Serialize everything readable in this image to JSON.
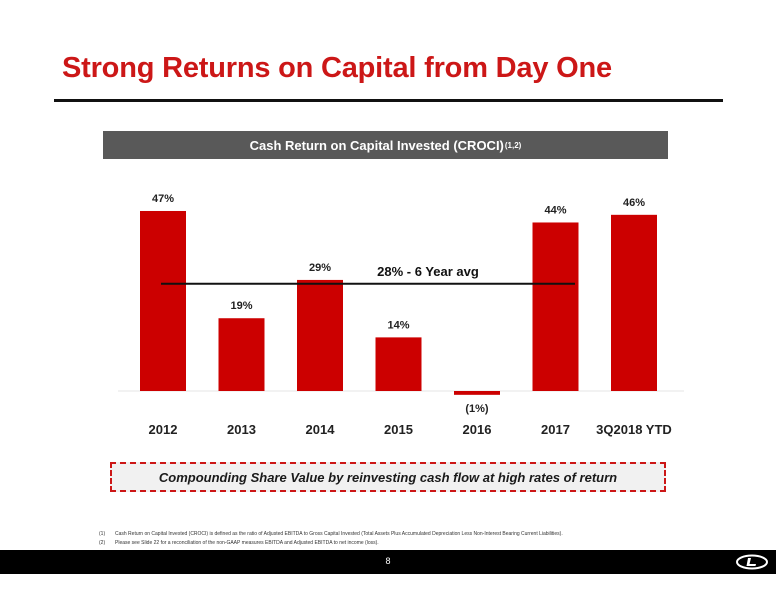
{
  "slide": {
    "title": "Strong Returns on Capital from Day One",
    "chart_header": "Cash Return on Capital Invested (CROCI)",
    "chart_header_sup": "(1,2)",
    "callout": "Compounding Share Value by reinvesting cash flow at high rates of return",
    "footnotes": [
      {
        "num": "(1)",
        "text": "Cash Return on Capital Invested (CROCI) is defined as the ratio of Adjusted EBITDA to Gross Capital Invested (Total Assets Plus Accumulated Depreciation Less Non-Interest Bearing Current Liabilities)."
      },
      {
        "num": "(2)",
        "text": "Please see Slide 22 for a reconciliation of the non-GAAP measures EBITDA and Adjusted EBITDA to net income (loss)."
      }
    ],
    "page_number": "8",
    "colors": {
      "accent": "#cc1717",
      "header_bg": "#595959",
      "bar": "#cc0000",
      "footer": "#000000"
    }
  },
  "chart_data": {
    "type": "bar",
    "title": "Cash Return on Capital Invested (CROCI)",
    "categories": [
      "2012",
      "2013",
      "2014",
      "2015",
      "2016",
      "2017",
      "3Q2018 YTD"
    ],
    "values": [
      47,
      19,
      29,
      14,
      -1,
      44,
      46
    ],
    "data_labels": [
      "47%",
      "19%",
      "29%",
      "14%",
      "(1%)",
      "44%",
      "46%"
    ],
    "average": {
      "value": 28,
      "label": "28% - 6 Year avg"
    },
    "ylim": [
      -2,
      50
    ],
    "grid": false
  }
}
